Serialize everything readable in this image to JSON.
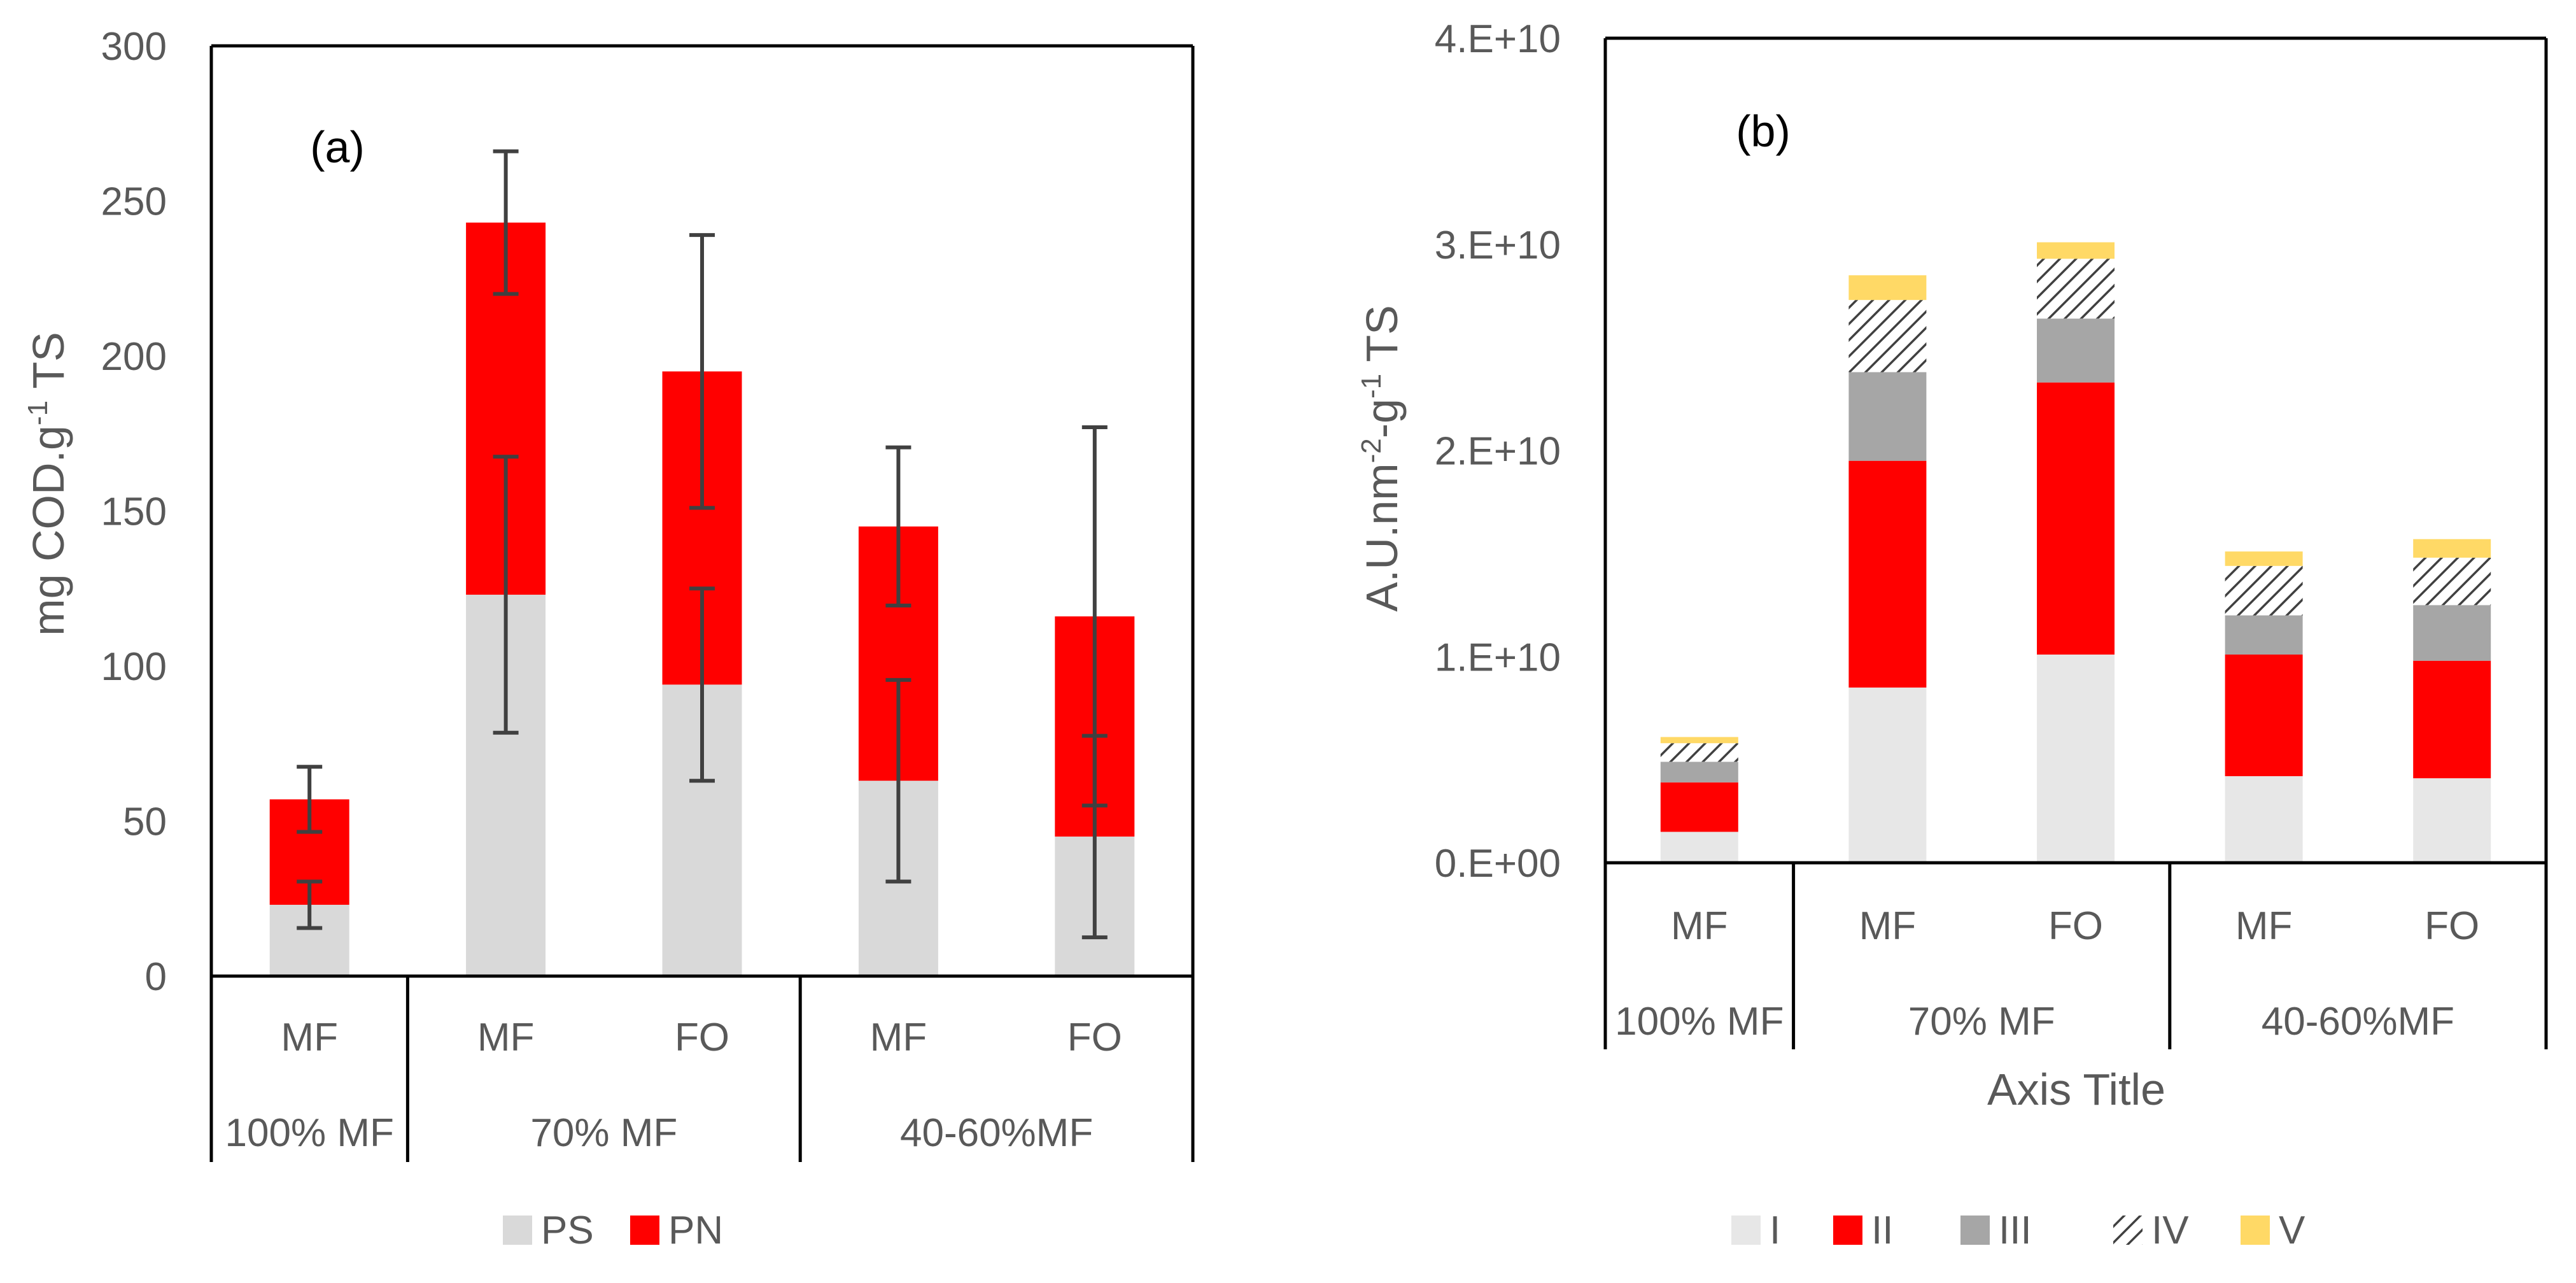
{
  "colors": {
    "PS": "#d9d9d9",
    "PN": "#ff0000",
    "I": "#e7e7e7",
    "II": "#ff0000",
    "III": "#a6a6a6",
    "IV": "hatch-dark-grey",
    "V": "#ffd966",
    "axis": "#000000",
    "text": "#595959",
    "errorbar": "#404040"
  },
  "chart_data": [
    {
      "type": "bar",
      "stacked": true,
      "panel_label": "(a)",
      "ylabel": "mg COD.g",
      "ylabel_sup": "-1",
      "ylabel_tail": " TS",
      "ylim": [
        0,
        300
      ],
      "yticks": [
        0,
        50,
        100,
        150,
        200,
        250,
        300
      ],
      "ytick_labels": [
        "0",
        "50",
        "100",
        "150",
        "200",
        "250",
        "300"
      ],
      "categories": [
        "MF",
        "MF",
        "FO",
        "MF",
        "FO"
      ],
      "groups": [
        {
          "label": "100% MF",
          "size": 1
        },
        {
          "label": "70% MF",
          "size": 2
        },
        {
          "label": "40-60%MF",
          "size": 2
        }
      ],
      "series": [
        {
          "name": "PS",
          "values": [
            23,
            123,
            94,
            63,
            45
          ],
          "error": [
            7.5,
            44.5,
            31,
            32.5,
            32.5
          ]
        },
        {
          "name": "PN",
          "values": [
            34,
            120,
            101,
            82,
            71
          ],
          "error": [
            10.5,
            23,
            44,
            25.5,
            61
          ]
        }
      ],
      "legend_position": "bottom",
      "grid": false
    },
    {
      "type": "bar",
      "stacked": true,
      "panel_label": "(b)",
      "ylabel": "A.U.nm",
      "ylabel_sup1": "-2",
      "ylabel_mid": "-g",
      "ylabel_sup2": "-1",
      "ylabel_tail": " TS",
      "xlabel": "Axis Title",
      "ylim": [
        0,
        40000000000
      ],
      "yticks": [
        0,
        10000000000,
        20000000000,
        30000000000,
        40000000000
      ],
      "ytick_labels": [
        "0.E+00",
        "1.E+10",
        "2.E+10",
        "3.E+10",
        "4.E+10"
      ],
      "categories": [
        "MF",
        "MF",
        "FO",
        "MF",
        "FO"
      ],
      "groups": [
        {
          "label": "100% MF",
          "size": 1
        },
        {
          "label": "70% MF",
          "size": 2
        },
        {
          "label": "40-60%MF",
          "size": 2
        }
      ],
      "series": [
        {
          "name": "I",
          "values": [
            1500000000,
            8500000000,
            10100000000,
            4200000000,
            4100000000
          ]
        },
        {
          "name": "II",
          "values": [
            2400000000,
            11000000000,
            13200000000,
            5900000000,
            5700000000
          ]
        },
        {
          "name": "III",
          "values": [
            1000000000,
            4300000000,
            3100000000,
            1900000000,
            2700000000
          ]
        },
        {
          "name": "IV",
          "values": [
            900000000,
            3500000000,
            2900000000,
            2400000000,
            2300000000
          ]
        },
        {
          "name": "V",
          "values": [
            300000000,
            1200000000,
            800000000,
            700000000,
            900000000
          ]
        }
      ],
      "legend_position": "bottom",
      "grid": false
    }
  ]
}
